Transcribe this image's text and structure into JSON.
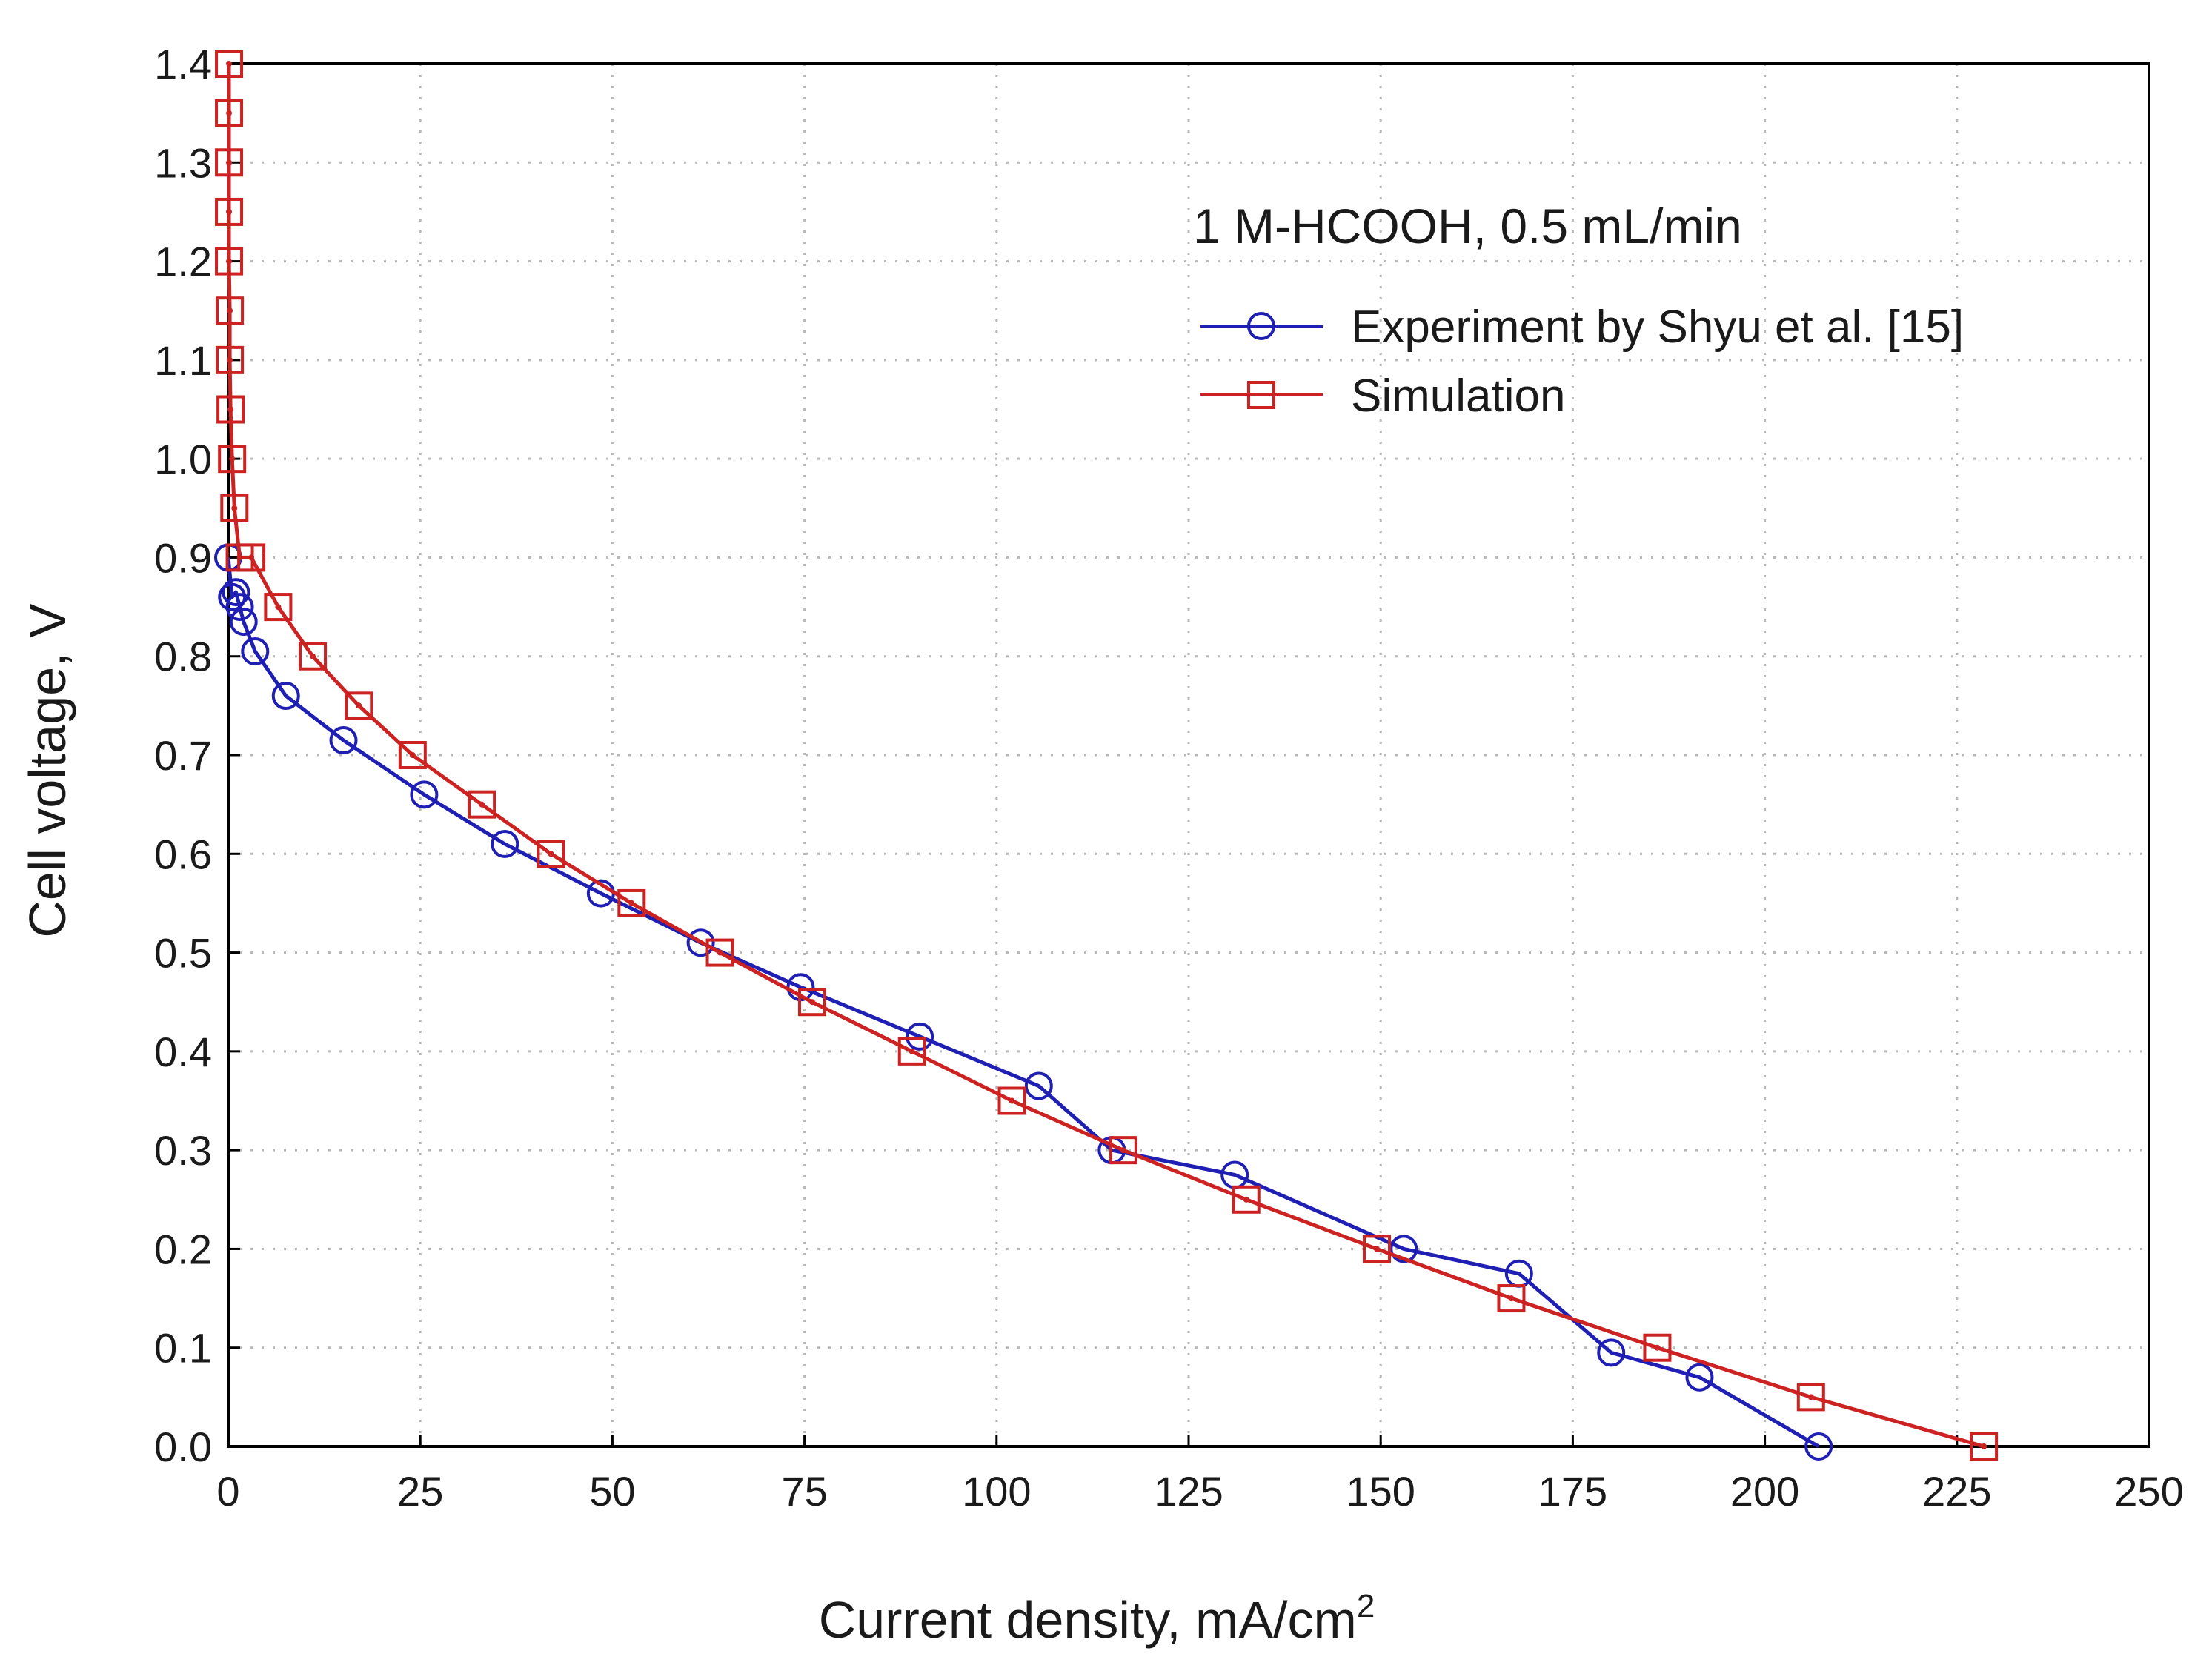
{
  "chart_data": {
    "type": "line",
    "title": "1 M-HCOOH, 0.5 mL/min",
    "xlabel": "Current density, mA/cm",
    "xlabel_superscript": "2",
    "ylabel": "Cell voltage, V",
    "xlim": [
      0,
      250
    ],
    "ylim": [
      0,
      1.4
    ],
    "x_ticks": [
      "0",
      "25",
      "50",
      "75",
      "100",
      "125",
      "150",
      "175",
      "200",
      "225",
      "250"
    ],
    "y_ticks": [
      "0.0",
      "0.1",
      "0.2",
      "0.3",
      "0.4",
      "0.5",
      "0.6",
      "0.7",
      "0.8",
      "0.9",
      "1.0",
      "1.1",
      "1.2",
      "1.3",
      "1.4"
    ],
    "x_tick_values": [
      0,
      25,
      50,
      75,
      100,
      125,
      150,
      175,
      200,
      225,
      250
    ],
    "y_tick_values": [
      0,
      0.1,
      0.2,
      0.3,
      0.4,
      0.5,
      0.6,
      0.7,
      0.8,
      0.9,
      1.0,
      1.1,
      1.2,
      1.3,
      1.4
    ],
    "grid": true,
    "legend_position": "top-right",
    "series": [
      {
        "name": "Experiment by Shyu et al. [15]",
        "color": "#1f1fb4",
        "marker": "circle",
        "x": [
          0,
          0.5,
          1,
          1.5,
          2,
          3.5,
          7.5,
          15,
          25.5,
          36,
          48.5,
          61.5,
          74.5,
          90,
          105.5,
          115,
          131,
          153,
          168,
          180,
          191.5,
          207
        ],
        "y": [
          0.9,
          0.86,
          0.865,
          0.85,
          0.835,
          0.805,
          0.76,
          0.715,
          0.66,
          0.61,
          0.56,
          0.51,
          0.465,
          0.415,
          0.365,
          0.3,
          0.275,
          0.2,
          0.175,
          0.095,
          0.07,
          0.0
        ]
      },
      {
        "name": "Simulation",
        "color": "#cc2222",
        "marker": "square",
        "x": [
          0.1,
          0.1,
          0.1,
          0.1,
          0.1,
          0.2,
          0.2,
          0.3,
          0.5,
          0.8,
          1.5,
          3,
          6.5,
          11,
          17,
          24,
          33,
          42,
          52.5,
          64,
          76,
          89,
          102,
          116.5,
          132.5,
          149.5,
          167,
          186,
          206,
          228.5
        ],
        "y": [
          1.4,
          1.35,
          1.3,
          1.25,
          1.2,
          1.15,
          1.1,
          1.05,
          1.0,
          0.95,
          0.9,
          0.9,
          0.85,
          0.8,
          0.75,
          0.7,
          0.65,
          0.6,
          0.55,
          0.5,
          0.45,
          0.4,
          0.35,
          0.3,
          0.25,
          0.2,
          0.15,
          0.1,
          0.05,
          0.0
        ]
      }
    ]
  }
}
